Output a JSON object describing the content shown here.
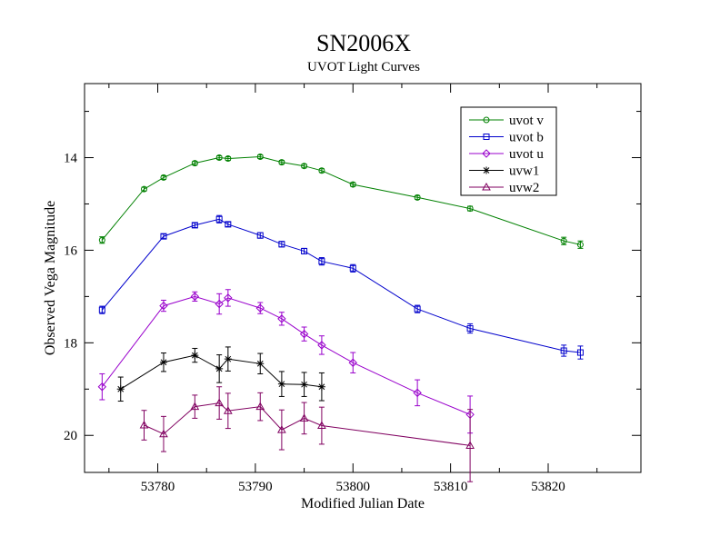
{
  "chart_data": {
    "type": "line",
    "title": "SN2006X",
    "subtitle": "UVOT Light Curves",
    "xlabel": "Modified Julian Date",
    "ylabel": "Observed Vega Magnitude",
    "xlim": [
      53772.5,
      53829.5
    ],
    "ylim": [
      20.8,
      12.4
    ],
    "y_inverted": true,
    "xticks": [
      53780,
      53790,
      53800,
      53810,
      53820
    ],
    "yticks": [
      14,
      16,
      18,
      20
    ],
    "grid": false,
    "legend_position": "top-right",
    "series": [
      {
        "name": "uvot v",
        "color": "#008000",
        "marker": "circle",
        "x": [
          53774.3,
          53778.6,
          53780.6,
          53783.8,
          53786.3,
          53787.2,
          53790.5,
          53792.7,
          53795.0,
          53796.8,
          53800.0,
          53806.6,
          53812.0,
          53821.6,
          53823.3
        ],
        "y": [
          15.78,
          14.68,
          14.43,
          14.12,
          14.0,
          14.02,
          13.98,
          14.1,
          14.18,
          14.28,
          14.58,
          14.86,
          15.1,
          15.8,
          15.88
        ],
        "err": [
          0.07,
          0.04,
          0.04,
          0.04,
          0.04,
          0.04,
          0.04,
          0.04,
          0.04,
          0.04,
          0.04,
          0.04,
          0.05,
          0.08,
          0.08
        ]
      },
      {
        "name": "uvot b",
        "color": "#0000cc",
        "marker": "square",
        "x": [
          53774.3,
          53780.6,
          53783.8,
          53786.3,
          53787.2,
          53790.5,
          53792.7,
          53795.0,
          53796.8,
          53800.0,
          53806.6,
          53812.0,
          53821.6,
          53823.3
        ],
        "y": [
          17.29,
          15.7,
          15.46,
          15.33,
          15.44,
          15.68,
          15.87,
          16.02,
          16.24,
          16.39,
          17.27,
          17.69,
          18.17,
          18.21
        ],
        "err": [
          0.08,
          0.05,
          0.05,
          0.08,
          0.05,
          0.06,
          0.06,
          0.06,
          0.08,
          0.08,
          0.08,
          0.1,
          0.12,
          0.14
        ]
      },
      {
        "name": "uvot u",
        "color": "#9900cc",
        "marker": "diamond",
        "x": [
          53774.3,
          53780.6,
          53783.8,
          53786.3,
          53787.2,
          53790.5,
          53792.7,
          53795.0,
          53796.8,
          53800.0,
          53806.6,
          53812.0
        ],
        "y": [
          18.95,
          17.2,
          17.0,
          17.16,
          17.03,
          17.25,
          17.48,
          17.81,
          18.05,
          18.43,
          19.08,
          19.55
        ],
        "err": [
          0.28,
          0.12,
          0.1,
          0.22,
          0.18,
          0.12,
          0.14,
          0.15,
          0.2,
          0.22,
          0.28,
          0.4
        ]
      },
      {
        "name": "uvw1",
        "color": "#000000",
        "marker": "star",
        "x": [
          53776.2,
          53780.6,
          53783.8,
          53786.3,
          53787.2,
          53790.5,
          53792.7,
          53795.0,
          53796.8
        ],
        "y": [
          19.0,
          18.42,
          18.27,
          18.56,
          18.35,
          18.45,
          18.89,
          18.9,
          18.95
        ],
        "err": [
          0.26,
          0.2,
          0.15,
          0.3,
          0.26,
          0.22,
          0.27,
          0.26,
          0.3
        ]
      },
      {
        "name": "uvw2",
        "color": "#800060",
        "marker": "triangle",
        "x": [
          53778.6,
          53780.6,
          53783.8,
          53786.3,
          53787.2,
          53790.5,
          53792.7,
          53795.0,
          53796.8,
          53812.0
        ],
        "y": [
          19.78,
          19.97,
          19.38,
          19.3,
          19.47,
          19.38,
          19.88,
          19.63,
          19.79,
          20.22
        ],
        "err": [
          0.32,
          0.38,
          0.25,
          0.35,
          0.38,
          0.3,
          0.43,
          0.34,
          0.4,
          0.78
        ]
      }
    ]
  }
}
